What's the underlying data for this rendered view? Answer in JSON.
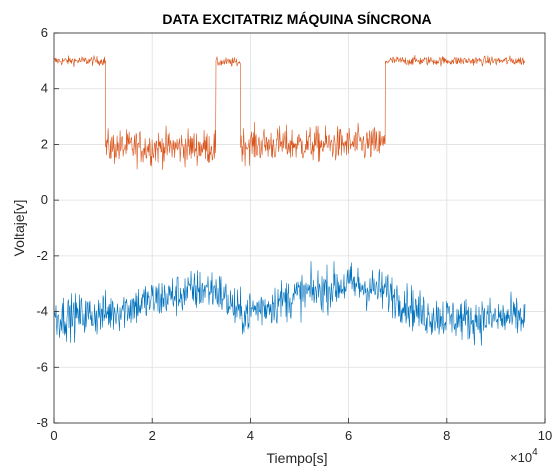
{
  "chart_data": {
    "type": "line",
    "title": "DATA EXCITATRIZ MÁQUINA SÍNCRONA",
    "xlabel": "Tiempo[s]",
    "ylabel": "Voltaje[v]",
    "x_exponent_label": "×10",
    "x_exponent_power": "4",
    "xlim": [
      0,
      10
    ],
    "ylim": [
      -8,
      6
    ],
    "x_ticks": [
      0,
      2,
      4,
      6,
      8,
      10
    ],
    "y_ticks": [
      -8,
      -6,
      -4,
      -2,
      0,
      2,
      4,
      6
    ],
    "grid": true,
    "series": [
      {
        "color": "#D95319",
        "segments": [
          {
            "x0": 0.0,
            "x1": 1.05,
            "mean": 5.0,
            "noise": 0.12
          },
          {
            "x0": 1.05,
            "x1": 3.3,
            "mean": 1.9,
            "noise": 0.45
          },
          {
            "x0": 3.3,
            "x1": 3.8,
            "mean": 4.95,
            "noise": 0.12
          },
          {
            "x0": 3.8,
            "x1": 6.75,
            "mean": 2.0,
            "noise": 0.45
          },
          {
            "x0": 6.75,
            "x1": 9.6,
            "mean": 5.0,
            "noise": 0.12
          }
        ]
      },
      {
        "color": "#0072BD",
        "x": [
          0.0,
          1.0,
          2.0,
          3.0,
          3.3,
          3.8,
          5.0,
          6.0,
          6.8,
          7.5,
          8.5,
          9.6
        ],
        "y": [
          -4.2,
          -4.1,
          -3.6,
          -3.2,
          -3.2,
          -4.1,
          -3.4,
          -3.0,
          -3.3,
          -4.1,
          -4.3,
          -4.2
        ],
        "noise": 0.55
      }
    ]
  }
}
